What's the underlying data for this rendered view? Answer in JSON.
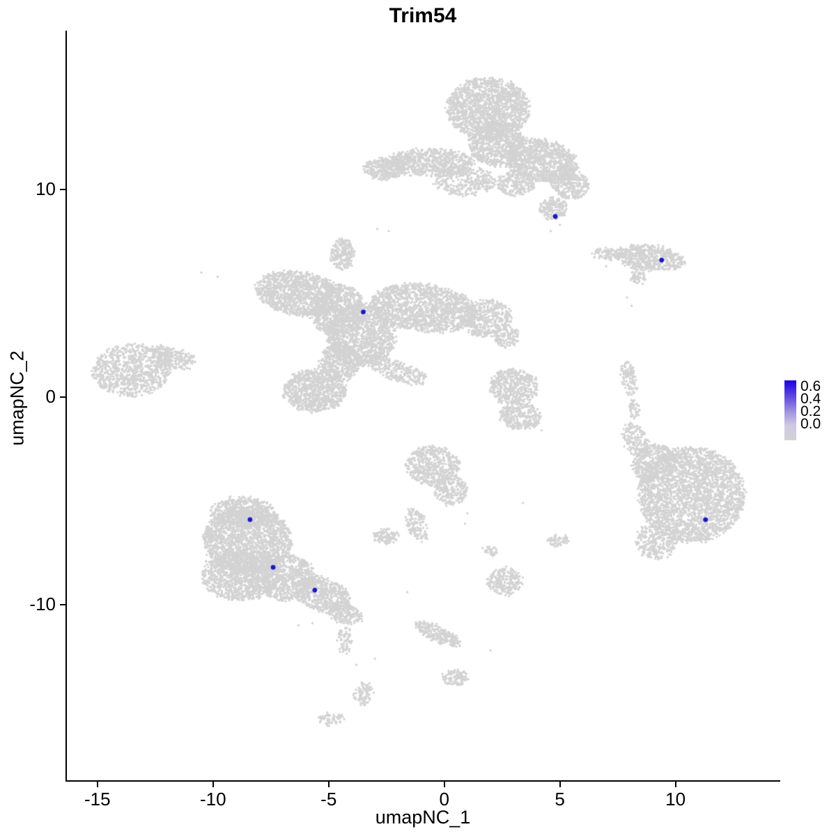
{
  "title": "Trim54",
  "axes": {
    "xlabel": "umapNC_1",
    "ylabel": "umapNC_2",
    "x_ticks": [
      -15,
      -10,
      -5,
      0,
      5,
      10
    ],
    "y_ticks": [
      10,
      0,
      -10
    ],
    "xlim": [
      -16.32,
      14.47
    ],
    "ylim": [
      -18.46,
      17.62
    ]
  },
  "legend": {
    "labels": [
      "0.6",
      "0.4",
      "0.2",
      "0.0"
    ],
    "high_color": "#1a00e6",
    "low_color": "#d3d3d3"
  },
  "chart_data": {
    "type": "scatter",
    "title": "Trim54",
    "xlabel": "umapNC_1",
    "ylabel": "umapNC_2",
    "xlim": [
      -16.32,
      14.47
    ],
    "ylim": [
      -18.46,
      17.62
    ],
    "point_color_low": "#d3d3d3",
    "point_color_high": "#1d14d8",
    "legend_scale": [
      0.0,
      0.2,
      0.4,
      0.6
    ],
    "clusters": [
      {
        "x": 1.9,
        "y": 13.9,
        "rx": 1.8,
        "ry": 1.5,
        "rot": 0,
        "n": 1600
      },
      {
        "x": 2.3,
        "y": 12.2,
        "rx": 1.2,
        "ry": 1.1,
        "rot": 0,
        "n": 800
      },
      {
        "x": 4.2,
        "y": 11.4,
        "rx": 1.6,
        "ry": 1.0,
        "rot": -15,
        "n": 1000
      },
      {
        "x": 5.4,
        "y": 10.3,
        "rx": 0.9,
        "ry": 0.7,
        "rot": -30,
        "n": 350
      },
      {
        "x": -0.6,
        "y": 11.3,
        "rx": 1.9,
        "ry": 0.65,
        "rot": 0,
        "n": 700
      },
      {
        "x": -2.6,
        "y": 11.0,
        "rx": 0.9,
        "ry": 0.5,
        "rot": 0,
        "n": 300
      },
      {
        "x": 0.9,
        "y": 10.4,
        "rx": 1.3,
        "ry": 0.7,
        "rot": 0,
        "n": 350
      },
      {
        "x": 3.1,
        "y": 10.3,
        "rx": 0.8,
        "ry": 0.6,
        "rot": 0,
        "n": 250
      },
      {
        "x": 4.7,
        "y": 9.1,
        "rx": 0.6,
        "ry": 0.55,
        "rot": 0,
        "n": 180
      },
      {
        "x": 8.9,
        "y": 6.7,
        "rx": 1.5,
        "ry": 0.6,
        "rot": -8,
        "n": 550
      },
      {
        "x": 7.1,
        "y": 6.9,
        "rx": 0.7,
        "ry": 0.25,
        "rot": 0,
        "n": 90
      },
      {
        "x": 8.4,
        "y": 5.9,
        "rx": 0.35,
        "ry": 0.45,
        "rot": 0,
        "n": 70
      },
      {
        "x": -6.3,
        "y": 5.0,
        "rx": 1.9,
        "ry": 1.05,
        "rot": -10,
        "n": 1300
      },
      {
        "x": -4.6,
        "y": 4.2,
        "rx": 1.2,
        "ry": 1.2,
        "rot": 0,
        "n": 800
      },
      {
        "x": -3.6,
        "y": 3.0,
        "rx": 1.5,
        "ry": 1.5,
        "rot": 0,
        "n": 1300
      },
      {
        "x": -4.4,
        "y": 6.9,
        "rx": 0.5,
        "ry": 0.75,
        "rot": 0,
        "n": 220
      },
      {
        "x": -0.9,
        "y": 4.3,
        "rx": 2.3,
        "ry": 1.15,
        "rot": -8,
        "n": 1500
      },
      {
        "x": 1.8,
        "y": 3.8,
        "rx": 1.1,
        "ry": 0.9,
        "rot": 0,
        "n": 450
      },
      {
        "x": 2.7,
        "y": 2.9,
        "rx": 0.55,
        "ry": 0.5,
        "rot": 0,
        "n": 130
      },
      {
        "x": -5.6,
        "y": 0.3,
        "rx": 1.35,
        "ry": 1.0,
        "rot": 0,
        "n": 900
      },
      {
        "x": -4.5,
        "y": 1.7,
        "rx": 0.9,
        "ry": 0.9,
        "rot": 0,
        "n": 450
      },
      {
        "x": -2.1,
        "y": 1.3,
        "rx": 1.4,
        "ry": 0.45,
        "rot": -22,
        "n": 280
      },
      {
        "x": -13.5,
        "y": 1.3,
        "rx": 1.7,
        "ry": 1.25,
        "rot": 5,
        "n": 900
      },
      {
        "x": -11.7,
        "y": 1.9,
        "rx": 1.0,
        "ry": 0.5,
        "rot": -18,
        "n": 230
      },
      {
        "x": 8.0,
        "y": 0.9,
        "rx": 0.28,
        "ry": 0.85,
        "rot": 8,
        "n": 110
      },
      {
        "x": 8.2,
        "y": -0.6,
        "rx": 0.22,
        "ry": 0.5,
        "rot": 0,
        "n": 50
      },
      {
        "x": 3.0,
        "y": 0.5,
        "rx": 1.05,
        "ry": 0.85,
        "rot": 0,
        "n": 480
      },
      {
        "x": 3.3,
        "y": -0.9,
        "rx": 0.9,
        "ry": 0.7,
        "rot": 0,
        "n": 300
      },
      {
        "x": -0.5,
        "y": -3.3,
        "rx": 1.15,
        "ry": 0.95,
        "rot": 0,
        "n": 550
      },
      {
        "x": 0.3,
        "y": -4.5,
        "rx": 0.75,
        "ry": 0.7,
        "rot": 0,
        "n": 230
      },
      {
        "x": -1.2,
        "y": -6.1,
        "rx": 0.4,
        "ry": 0.85,
        "rot": 18,
        "n": 140
      },
      {
        "x": -2.5,
        "y": -6.7,
        "rx": 0.55,
        "ry": 0.35,
        "rot": 0,
        "n": 110
      },
      {
        "x": -8.5,
        "y": -6.9,
        "rx": 1.9,
        "ry": 1.6,
        "rot": 0,
        "n": 1900
      },
      {
        "x": -8.8,
        "y": -8.6,
        "rx": 1.7,
        "ry": 1.2,
        "rot": 0,
        "n": 1100
      },
      {
        "x": -6.9,
        "y": -8.7,
        "rx": 1.3,
        "ry": 1.1,
        "rot": 0,
        "n": 800
      },
      {
        "x": -8.7,
        "y": -5.5,
        "rx": 1.4,
        "ry": 0.7,
        "rot": 0,
        "n": 500
      },
      {
        "x": -5.3,
        "y": -9.5,
        "rx": 1.25,
        "ry": 0.8,
        "rot": -20,
        "n": 550
      },
      {
        "x": -4.3,
        "y": -10.4,
        "rx": 0.75,
        "ry": 0.5,
        "rot": -28,
        "n": 220
      },
      {
        "x": -4.3,
        "y": -11.7,
        "rx": 0.28,
        "ry": 0.75,
        "rot": 0,
        "n": 70
      },
      {
        "x": -3.5,
        "y": -14.3,
        "rx": 0.45,
        "ry": 0.55,
        "rot": 0,
        "n": 80
      },
      {
        "x": 10.7,
        "y": -4.7,
        "rx": 2.3,
        "ry": 2.3,
        "rot": 0,
        "n": 2700
      },
      {
        "x": 9.1,
        "y": -3.2,
        "rx": 1.0,
        "ry": 0.9,
        "rot": 25,
        "n": 450
      },
      {
        "x": 8.3,
        "y": -2.1,
        "rx": 0.5,
        "ry": 0.9,
        "rot": 20,
        "n": 170
      },
      {
        "x": 9.2,
        "y": -6.9,
        "rx": 0.9,
        "ry": 0.9,
        "rot": 0,
        "n": 280
      },
      {
        "x": 2.6,
        "y": -8.9,
        "rx": 0.75,
        "ry": 0.65,
        "rot": 0,
        "n": 240
      },
      {
        "x": 4.9,
        "y": -6.9,
        "rx": 0.45,
        "ry": 0.3,
        "rot": 0,
        "n": 60
      },
      {
        "x": -0.3,
        "y": -11.4,
        "rx": 1.1,
        "ry": 0.35,
        "rot": -28,
        "n": 260
      },
      {
        "x": 0.5,
        "y": -13.5,
        "rx": 0.55,
        "ry": 0.4,
        "rot": 0,
        "n": 110
      },
      {
        "x": -4.9,
        "y": -15.5,
        "rx": 0.55,
        "ry": 0.28,
        "rot": 8,
        "n": 60
      },
      {
        "x": 2.0,
        "y": -7.4,
        "rx": 0.3,
        "ry": 0.25,
        "rot": 0,
        "n": 35
      }
    ],
    "singletons": [
      [
        -10.5,
        6.0
      ],
      [
        -2.9,
        8.1
      ],
      [
        -2.4,
        8.0
      ],
      [
        7.9,
        4.8
      ],
      [
        8.1,
        4.4
      ],
      [
        4.2,
        -1.6
      ],
      [
        3.4,
        -5.1
      ],
      [
        0.9,
        -6.1
      ],
      [
        1.0,
        -5.6
      ],
      [
        -1.6,
        -9.4
      ],
      [
        2.0,
        -12.2
      ],
      [
        -6.3,
        -11.0
      ],
      [
        -5.7,
        -10.9
      ],
      [
        -3.0,
        -12.6
      ],
      [
        -3.8,
        -12.9
      ],
      [
        7.0,
        6.3
      ],
      [
        6.6,
        7.0
      ],
      [
        -9.8,
        5.8
      ],
      [
        5.0,
        8.3
      ],
      [
        4.6,
        8.0
      ]
    ],
    "highlighted_points": [
      {
        "x": 4.8,
        "y": 8.7
      },
      {
        "x": 9.4,
        "y": 6.6
      },
      {
        "x": -3.5,
        "y": 4.1
      },
      {
        "x": -8.4,
        "y": -5.9
      },
      {
        "x": -7.4,
        "y": -8.2
      },
      {
        "x": -5.6,
        "y": -9.3
      },
      {
        "x": 11.3,
        "y": -5.9
      }
    ]
  }
}
